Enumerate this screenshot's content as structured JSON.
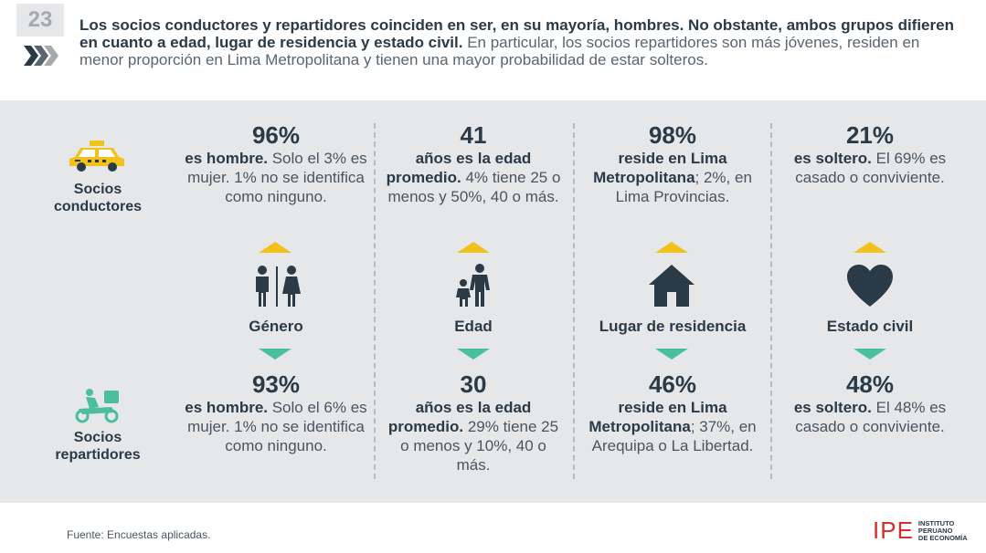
{
  "page_number": "23",
  "header": {
    "bold_text": "Los socios conductores y repartidores coinciden en ser, en su mayoría, hombres. No obstante, ambos grupos difieren en cuanto a edad, lugar de residencia y estado civil.",
    "light_text": " En particular, los socios repartidores son más jóvenes, residen en menor proporción en Lima Metropolitana y tienen una mayor probabilidad de estar solteros."
  },
  "rows": {
    "drivers_label": "Socios conductores",
    "couriers_label": "Socios repartidores"
  },
  "categories": [
    {
      "label": "Género",
      "icon": "gender-icon",
      "drivers": {
        "number": "96%",
        "bold": "es hombre.",
        "rest": " Solo el 3% es mujer. 1% no se identifica como ninguno."
      },
      "couriers": {
        "number": "93%",
        "bold": "es hombre.",
        "rest": " Solo el 6% es mujer. 1% no se identifica como ninguno."
      }
    },
    {
      "label": "Edad",
      "icon": "family-icon",
      "drivers": {
        "number": "41",
        "bold": "años es la edad promedio.",
        "rest": " 4% tiene 25 o menos y 50%, 40 o más."
      },
      "couriers": {
        "number": "30",
        "bold": "años es la edad promedio.",
        "rest": " 29% tiene 25 o menos y 10%, 40 o más."
      }
    },
    {
      "label": "Lugar de residencia",
      "icon": "house-icon",
      "drivers": {
        "number": "98%",
        "bold": "reside en Lima Metropolitana",
        "rest": "; 2%, en Lima Provincias."
      },
      "couriers": {
        "number": "46%",
        "bold": "reside en Lima Metropolitana",
        "rest": "; 37%, en Arequipa o La Libertad."
      }
    },
    {
      "label": "Estado civil",
      "icon": "heart-icon",
      "drivers": {
        "number": "21%",
        "bold": "es soltero.",
        "rest": " El 69% es casado o conviviente."
      },
      "couriers": {
        "number": "48%",
        "bold": "es soltero.",
        "rest": " El 48% es casado o conviviente."
      }
    }
  ],
  "source": "Fuente: Encuestas aplicadas.",
  "logo": {
    "main": "IPE",
    "line1": "INSTITUTO",
    "line2": "PERUANO",
    "line3": "DE ECONOMÍA"
  },
  "colors": {
    "accent_up": "#f2c21b",
    "accent_down": "#4bbf9b",
    "brand_red": "#d0322b",
    "navy": "#2b3a47"
  }
}
